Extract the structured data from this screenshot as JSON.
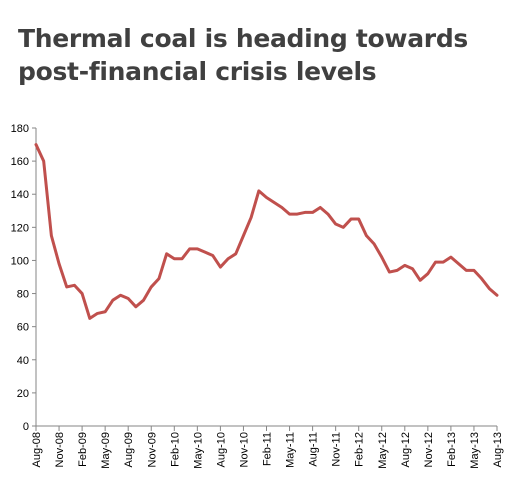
{
  "chart_data": {
    "type": "line",
    "title": "Thermal coal is heading towards post-financial crisis levels",
    "xlabel": "",
    "ylabel": "",
    "ylim": [
      0,
      180
    ],
    "yticks": [
      0,
      20,
      40,
      60,
      80,
      100,
      120,
      140,
      160,
      180
    ],
    "grid": false,
    "legend": "none",
    "x_tick_labels": [
      "Aug-08",
      "Nov-08",
      "Feb-09",
      "May-09",
      "Aug-09",
      "Nov-09",
      "Feb-10",
      "May-10",
      "Aug-10",
      "Nov-10",
      "Feb-11",
      "May-11",
      "Aug-11",
      "Nov-11",
      "Feb-12",
      "May-12",
      "Aug-12",
      "Nov-12",
      "Feb-13",
      "May-13",
      "Aug-13"
    ],
    "x": [
      "Aug-08",
      "Sep-08",
      "Oct-08",
      "Nov-08",
      "Dec-08",
      "Jan-09",
      "Feb-09",
      "Mar-09",
      "Apr-09",
      "May-09",
      "Jun-09",
      "Jul-09",
      "Aug-09",
      "Sep-09",
      "Oct-09",
      "Nov-09",
      "Dec-09",
      "Jan-10",
      "Feb-10",
      "Mar-10",
      "Apr-10",
      "May-10",
      "Jun-10",
      "Jul-10",
      "Aug-10",
      "Sep-10",
      "Oct-10",
      "Nov-10",
      "Dec-10",
      "Jan-11",
      "Feb-11",
      "Mar-11",
      "Apr-11",
      "May-11",
      "Jun-11",
      "Jul-11",
      "Aug-11",
      "Sep-11",
      "Oct-11",
      "Nov-11",
      "Dec-11",
      "Jan-12",
      "Feb-12",
      "Mar-12",
      "Apr-12",
      "May-12",
      "Jun-12",
      "Jul-12",
      "Aug-12",
      "Sep-12",
      "Oct-12",
      "Nov-12",
      "Dec-12",
      "Jan-13",
      "Feb-13",
      "Mar-13",
      "Apr-13",
      "May-13",
      "Jun-13",
      "Jul-13",
      "Aug-13"
    ],
    "series": [
      {
        "color": "#c0504d",
        "values": [
          170,
          160,
          115,
          98,
          84,
          85,
          80,
          65,
          68,
          69,
          76,
          79,
          77,
          72,
          76,
          84,
          89,
          104,
          101,
          101,
          107,
          107,
          105,
          103,
          96,
          101,
          104,
          115,
          126,
          142,
          138,
          135,
          132,
          128,
          128,
          129,
          129,
          132,
          128,
          122,
          120,
          125,
          125,
          115,
          110,
          102,
          93,
          94,
          97,
          95,
          88,
          92,
          99,
          99,
          102,
          98,
          94,
          94,
          89,
          83,
          79
        ]
      }
    ]
  }
}
